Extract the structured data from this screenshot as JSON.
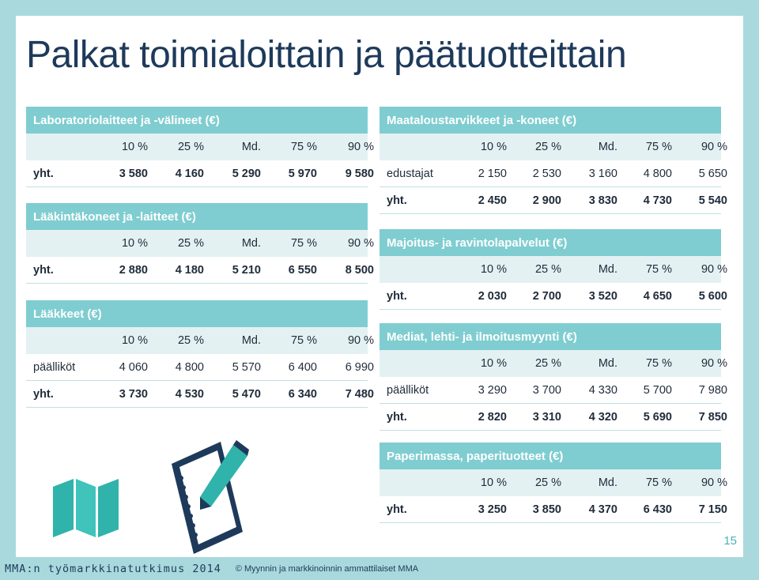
{
  "title": "Palkat toimialoittain ja päätuotteittain",
  "col_headers": [
    "10 %",
    "25 %",
    "Md.",
    "75 %",
    "90 %"
  ],
  "left_tables": [
    {
      "title": "Laboratoriolaitteet ja -välineet (€)",
      "rows": [
        {
          "label": "yht.",
          "values": [
            "3 580",
            "4 160",
            "5 290",
            "5 970",
            "9 580"
          ]
        }
      ]
    },
    {
      "title": "Lääkintäkoneet ja -laitteet (€)",
      "rows": [
        {
          "label": "yht.",
          "values": [
            "2 880",
            "4 180",
            "5 210",
            "6 550",
            "8 500"
          ]
        }
      ]
    },
    {
      "title": "Lääkkeet (€)",
      "rows": [
        {
          "label": "päälliköt",
          "values": [
            "4 060",
            "4 800",
            "5 570",
            "6 400",
            "6 990"
          ]
        },
        {
          "label": "yht.",
          "values": [
            "3 730",
            "4 530",
            "5 470",
            "6 340",
            "7 480"
          ]
        }
      ]
    }
  ],
  "right_tables": [
    {
      "title": "Maataloustarvikkeet ja -koneet (€)",
      "rows": [
        {
          "label": "edustajat",
          "values": [
            "2 150",
            "2 530",
            "3 160",
            "4 800",
            "5 650"
          ]
        },
        {
          "label": "yht.",
          "values": [
            "2 450",
            "2 900",
            "3 830",
            "4 730",
            "5 540"
          ]
        }
      ]
    },
    {
      "title": "Majoitus- ja ravintolapalvelut (€)",
      "rows": [
        {
          "label": "yht.",
          "values": [
            "2 030",
            "2 700",
            "3 520",
            "4 650",
            "5 600"
          ]
        }
      ]
    },
    {
      "title": "Mediat, lehti- ja ilmoitusmyynti (€)",
      "rows": [
        {
          "label": "päälliköt",
          "values": [
            "3 290",
            "3 700",
            "4 330",
            "5 700",
            "7 980"
          ]
        },
        {
          "label": "yht.",
          "values": [
            "2 820",
            "3 310",
            "4 320",
            "5 690",
            "7 850"
          ]
        }
      ]
    },
    {
      "title": "Paperimassa, paperituotteet (€)",
      "rows": [
        {
          "label": "yht.",
          "values": [
            "3 250",
            "3 850",
            "4 370",
            "6 430",
            "7 150"
          ]
        }
      ]
    }
  ],
  "page_number": "15",
  "footer": {
    "left": "MMA:n työmarkkinatutkimus 2014",
    "right": "© Myynnin ja markkinoinnin ammattilaiset MMA"
  },
  "icons": [
    "map-icon",
    "notebook-pencil-icon"
  ],
  "colors": {
    "accent": "#7fcdd1",
    "light": "#e3f1f2",
    "title": "#1e3a5b",
    "frame": "#a9d9dd"
  }
}
